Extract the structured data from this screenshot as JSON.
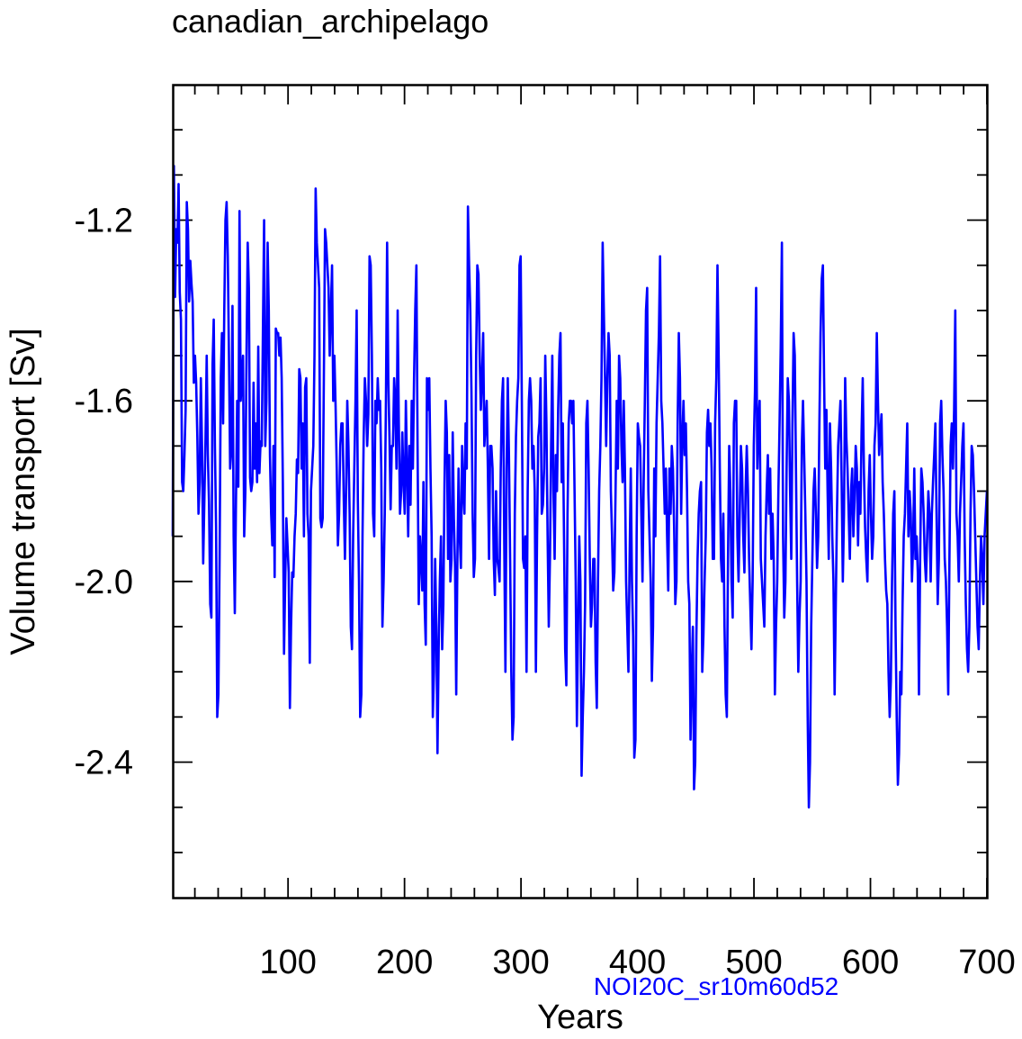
{
  "chart_data": {
    "type": "line",
    "title": "canadian_archipelago",
    "xlabel": "Years",
    "ylabel": "Volume transport [Sv]",
    "xlim": [
      1,
      700
    ],
    "ylim": [
      -2.7,
      -0.9
    ],
    "xticks": [
      100,
      200,
      300,
      400,
      500,
      600,
      700
    ],
    "yticks": [
      -1.2,
      -1.6,
      -2.0,
      -2.4
    ],
    "yticklabels": [
      "-1.2",
      "-1.6",
      "-2.0",
      "-2.4"
    ],
    "grid": false,
    "annotation": "NOI20C_sr10m60d52",
    "series_color": "#0000ff",
    "series": [
      {
        "values": [
          -1.9,
          -1.08,
          -1.37,
          -1.22,
          -1.25,
          -1.12,
          -1.36,
          -1.42,
          -1.78,
          -1.8,
          -1.72,
          -1.62,
          -1.16,
          -1.22,
          -1.38,
          -1.29,
          -1.34,
          -1.38,
          -1.56,
          -1.5,
          -1.56,
          -1.68,
          -1.85,
          -1.78,
          -1.55,
          -1.7,
          -1.96,
          -1.82,
          -1.68,
          -1.5,
          -1.72,
          -1.83,
          -2.05,
          -2.08,
          -1.52,
          -1.42,
          -1.7,
          -1.88,
          -2.3,
          -2.25,
          -1.95,
          -1.55,
          -1.45,
          -1.65,
          -1.4,
          -1.2,
          -1.16,
          -1.28,
          -1.5,
          -1.75,
          -1.71,
          -1.39,
          -1.9,
          -2.07,
          -1.82,
          -1.6,
          -1.79,
          -1.18,
          -1.6,
          -1.55,
          -1.5,
          -1.9,
          -1.8,
          -1.49,
          -1.25,
          -1.35,
          -1.77,
          -1.8,
          -1.78,
          -1.56,
          -1.75,
          -1.65,
          -1.78,
          -1.48,
          -1.76,
          -1.69,
          -1.7,
          -1.44,
          -1.2,
          -1.7,
          -1.6,
          -1.25,
          -1.4,
          -1.72,
          -1.85,
          -1.92,
          -1.7,
          -1.99,
          -1.44,
          -1.45,
          -1.45,
          -1.5,
          -1.46,
          -1.55,
          -1.78,
          -2.16,
          -2.0,
          -1.86,
          -1.92,
          -1.98,
          -2.28,
          -2.1,
          -1.98,
          -1.99,
          -1.9,
          -1.85,
          -1.73,
          -1.76,
          -1.53,
          -1.55,
          -1.75,
          -1.65,
          -1.9,
          -1.57,
          -1.55,
          -1.85,
          -1.9,
          -2.18,
          -1.8,
          -1.75,
          -1.7,
          -1.5,
          -1.13,
          -1.25,
          -1.3,
          -1.35,
          -1.86,
          -1.88,
          -1.86,
          -1.55,
          -1.22,
          -1.25,
          -1.3,
          -1.35,
          -1.5,
          -1.4,
          -1.3,
          -1.6,
          -1.5,
          -1.61,
          -1.75,
          -1.92,
          -1.85,
          -1.7,
          -1.65,
          -1.65,
          -1.82,
          -1.95,
          -1.8,
          -1.6,
          -1.7,
          -1.85,
          -2.1,
          -2.15,
          -1.9,
          -1.75,
          -1.6,
          -1.4,
          -1.82,
          -2.0,
          -2.3,
          -2.25,
          -1.9,
          -1.68,
          -1.55,
          -1.6,
          -1.7,
          -1.63,
          -1.28,
          -1.3,
          -1.5,
          -1.85,
          -1.9,
          -1.6,
          -1.65,
          -1.55,
          -1.62,
          -1.6,
          -1.75,
          -2.1,
          -2.0,
          -1.85,
          -1.6,
          -1.25,
          -1.55,
          -1.68,
          -1.84,
          -1.7,
          -1.7,
          -1.55,
          -1.6,
          -1.75,
          -1.4,
          -1.65,
          -1.85,
          -1.8,
          -1.67,
          -1.78,
          -1.85,
          -1.6,
          -1.75,
          -1.9,
          -1.7,
          -1.83,
          -1.6,
          -1.75,
          -1.55,
          -1.4,
          -1.3,
          -1.7,
          -2.05,
          -1.9,
          -1.95,
          -2.02,
          -1.78,
          -2.05,
          -2.14,
          -1.55,
          -1.62,
          -1.55,
          -1.75,
          -1.9,
          -2.3,
          -2.2,
          -1.95,
          -2.1,
          -2.38,
          -2.15,
          -2.0,
          -1.9,
          -2.15,
          -2.05,
          -1.78,
          -1.6,
          -1.67,
          -1.95,
          -1.72,
          -2.0,
          -1.95,
          -1.67,
          -1.86,
          -1.97,
          -2.25,
          -1.95,
          -1.75,
          -1.9,
          -1.97,
          -1.7,
          -1.8,
          -1.85,
          -1.65,
          -1.75,
          -1.17,
          -1.3,
          -1.4,
          -1.58,
          -1.85,
          -1.99,
          -1.95,
          -1.5,
          -1.3,
          -1.32,
          -1.5,
          -1.62,
          -1.55,
          -1.45,
          -1.7,
          -1.65,
          -1.6,
          -1.75,
          -1.95,
          -1.7,
          -1.7,
          -1.75,
          -1.95,
          -2.03,
          -1.8,
          -1.95,
          -1.97,
          -2.0,
          -1.75,
          -1.6,
          -1.55,
          -1.92,
          -2.2,
          -1.75,
          -1.55,
          -1.72,
          -1.95,
          -2.2,
          -2.35,
          -2.3,
          -1.85,
          -1.68,
          -1.6,
          -1.55,
          -1.3,
          -1.28,
          -1.6,
          -1.95,
          -1.97,
          -1.9,
          -2.2,
          -1.8,
          -1.6,
          -1.55,
          -1.6,
          -1.75,
          -1.7,
          -1.8,
          -2.2,
          -1.9,
          -1.68,
          -1.65,
          -1.55,
          -1.85,
          -1.83,
          -1.75,
          -1.5,
          -1.65,
          -1.9,
          -2.1,
          -1.95,
          -1.7,
          -1.5,
          -1.8,
          -1.95,
          -1.72,
          -1.8,
          -1.62,
          -1.5,
          -1.45,
          -1.78,
          -1.65,
          -1.9,
          -2.15,
          -2.23,
          -1.85,
          -1.65,
          -1.6,
          -1.6,
          -1.65,
          -1.6,
          -1.8,
          -2.0,
          -2.32,
          -2.1,
          -1.9,
          -2.0,
          -2.43,
          -2.3,
          -2.2,
          -2.05,
          -1.65,
          -1.6,
          -1.75,
          -1.95,
          -2.1,
          -2.05,
          -1.95,
          -1.95,
          -2.18,
          -2.28,
          -2.0,
          -1.8,
          -1.7,
          -1.55,
          -1.25,
          -1.4,
          -1.55,
          -1.7,
          -1.55,
          -1.45,
          -1.5,
          -1.8,
          -1.9,
          -2.02,
          -1.98,
          -1.8,
          -1.6,
          -1.75,
          -1.5,
          -1.55,
          -1.7,
          -1.78,
          -1.6,
          -1.75,
          -2.0,
          -2.1,
          -2.2,
          -1.95,
          -1.75,
          -2.0,
          -2.12,
          -2.39,
          -2.35,
          -1.9,
          -1.65,
          -1.68,
          -1.7,
          -1.85,
          -2.0,
          -1.78,
          -1.6,
          -1.4,
          -1.35,
          -1.8,
          -1.9,
          -2.0,
          -2.22,
          -2.1,
          -1.75,
          -1.9,
          -1.65,
          -1.55,
          -1.45,
          -1.28,
          -1.6,
          -1.65,
          -1.75,
          -1.85,
          -1.75,
          -1.9,
          -2.02,
          -1.75,
          -1.85,
          -1.7,
          -1.75,
          -1.88,
          -2.05,
          -2.0,
          -1.65,
          -1.45,
          -1.55,
          -1.85,
          -1.68,
          -1.6,
          -1.72,
          -1.65,
          -1.8,
          -2.0,
          -2.05,
          -2.35,
          -2.2,
          -2.1,
          -2.46,
          -2.4,
          -2.12,
          -1.95,
          -1.85,
          -1.8,
          -1.78,
          -2.2,
          -2.12,
          -2.0,
          -1.9,
          -1.67,
          -1.62,
          -1.7,
          -1.65,
          -1.75,
          -1.95,
          -1.95,
          -1.65,
          -1.55,
          -1.3,
          -1.5,
          -1.75,
          -1.95,
          -2.0,
          -1.85,
          -2.1,
          -2.25,
          -2.3,
          -1.95,
          -1.7,
          -1.8,
          -2.0,
          -2.08,
          -1.65,
          -1.6,
          -1.6,
          -1.9,
          -2.0,
          -1.85,
          -1.7,
          -1.75,
          -1.9,
          -1.98,
          -1.8,
          -1.7,
          -1.8,
          -1.95,
          -2.05,
          -2.15,
          -2.0,
          -1.7,
          -1.58,
          -1.35,
          -1.75,
          -1.65,
          -1.6,
          -1.95,
          -2.0,
          -2.05,
          -2.1,
          -1.9,
          -1.8,
          -1.72,
          -1.85,
          -1.75,
          -1.95,
          -1.85,
          -1.95,
          -2.25,
          -2.1,
          -2.0,
          -1.8,
          -1.65,
          -1.48,
          -1.25,
          -1.9,
          -2.08,
          -2.0,
          -1.75,
          -1.55,
          -1.6,
          -1.8,
          -1.95,
          -1.65,
          -1.45,
          -1.5,
          -1.75,
          -2.0,
          -2.2,
          -2.08,
          -2.0,
          -1.7,
          -1.6,
          -1.72,
          -1.85,
          -2.0,
          -2.3,
          -2.5,
          -2.4,
          -2.1,
          -1.95,
          -1.8,
          -1.75,
          -1.85,
          -1.97,
          -1.9,
          -1.65,
          -1.45,
          -1.33,
          -1.3,
          -1.55,
          -1.75,
          -1.62,
          -1.8,
          -1.95,
          -1.65,
          -1.75,
          -1.9,
          -2.0,
          -2.25,
          -2.05,
          -1.85,
          -1.7,
          -1.65,
          -1.6,
          -1.78,
          -2.0,
          -1.85,
          -1.55,
          -1.68,
          -1.75,
          -1.85,
          -1.95,
          -1.8,
          -1.75,
          -1.9,
          -1.82,
          -1.7,
          -1.75,
          -1.92,
          -1.78,
          -1.85,
          -1.67,
          -1.55,
          -1.75,
          -1.88,
          -1.95,
          -2.0,
          -1.8,
          -1.72,
          -1.85,
          -1.95,
          -1.9,
          -1.7,
          -1.65,
          -1.45,
          -1.6,
          -1.72,
          -1.67,
          -1.63,
          -1.78,
          -1.85,
          -1.95,
          -2.02,
          -2.05,
          -2.2,
          -2.3,
          -2.22,
          -2.0,
          -1.85,
          -1.8,
          -2.1,
          -2.3,
          -2.45,
          -2.38,
          -2.2,
          -2.25,
          -2.05,
          -1.9,
          -1.85,
          -1.75,
          -1.65,
          -1.9,
          -1.8,
          -1.85,
          -2.0,
          -1.92,
          -1.75,
          -1.95,
          -1.9,
          -1.98,
          -2.25,
          -1.95,
          -1.75,
          -1.78,
          -1.85,
          -1.95,
          -2.0,
          -1.9,
          -1.8,
          -1.85,
          -2.0,
          -1.85,
          -1.78,
          -1.72,
          -1.65,
          -1.85,
          -2.05,
          -1.95,
          -1.65,
          -1.6,
          -1.72,
          -1.8,
          -1.95,
          -2.0,
          -2.1,
          -2.25,
          -1.95,
          -1.7,
          -1.65,
          -1.75,
          -1.62,
          -1.4,
          -1.85,
          -1.9,
          -2.0,
          -1.85,
          -1.78,
          -1.7,
          -1.65,
          -1.9,
          -2.05,
          -2.15,
          -2.2,
          -2.1,
          -1.85,
          -1.7,
          -1.72,
          -1.8,
          -1.9,
          -2.0,
          -2.1,
          -2.15,
          -2.0,
          -1.9,
          -1.95,
          -2.05,
          -1.9,
          -1.85,
          -1.8
        ]
      }
    ]
  }
}
